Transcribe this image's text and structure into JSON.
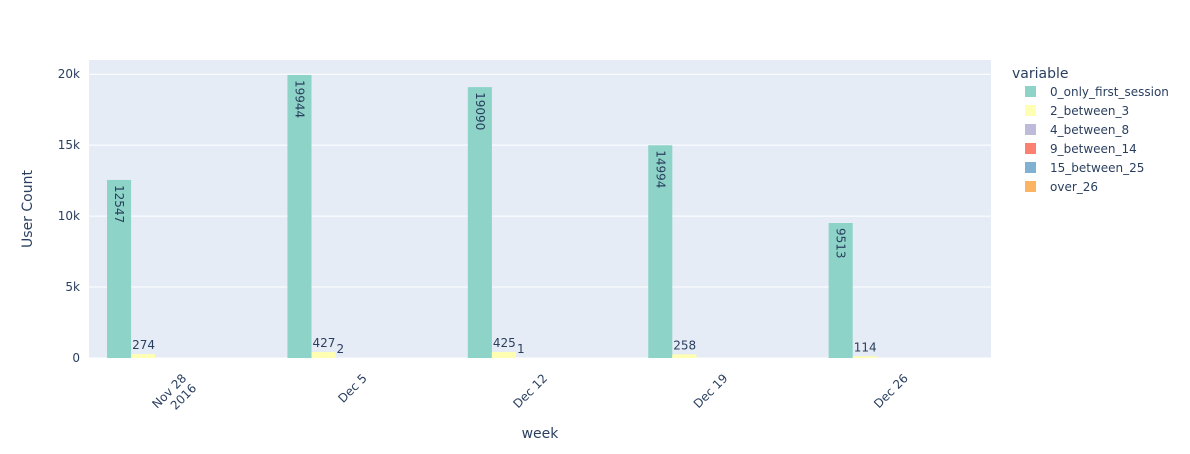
{
  "chart_data": {
    "type": "bar",
    "barmode": "group",
    "xlabel": "week",
    "ylabel": "User Count",
    "ylim": [
      0,
      21000
    ],
    "yticks": [
      0,
      5000,
      10000,
      15000,
      20000
    ],
    "ytick_labels": [
      "0",
      "5k",
      "10k",
      "15k",
      "20k"
    ],
    "categories": [
      "Nov 28 2016",
      "Dec 5",
      "Dec 12",
      "Dec 19",
      "Dec 26"
    ],
    "category_tick_lines": [
      [
        "Nov 28",
        "2016"
      ],
      [
        "Dec 5"
      ],
      [
        "Dec 12"
      ],
      [
        "Dec 19"
      ],
      [
        "Dec 26"
      ]
    ],
    "grid": true,
    "legend": {
      "title": "variable",
      "placement": "right"
    },
    "series": [
      {
        "name": "0_only_first_session",
        "color": "#8dd3c7",
        "values": [
          12547,
          19944,
          19090,
          14994,
          9513
        ]
      },
      {
        "name": "2_between_3",
        "color": "#ffffb3",
        "values": [
          274,
          427,
          425,
          258,
          114
        ]
      },
      {
        "name": "4_between_8",
        "color": "#bebada",
        "values": [
          0,
          2,
          1,
          0,
          0
        ]
      },
      {
        "name": "9_between_14",
        "color": "#fb8072",
        "values": [
          0,
          0,
          0,
          0,
          0
        ]
      },
      {
        "name": "15_between_25",
        "color": "#80b1d3",
        "values": [
          0,
          0,
          0,
          0,
          0
        ]
      },
      {
        "name": "over_26",
        "color": "#fdb462",
        "values": [
          0,
          0,
          0,
          0,
          0
        ]
      }
    ],
    "data_labels": [
      {
        "series": 0,
        "category": 0,
        "text": "12547",
        "position": "inside-rotated"
      },
      {
        "series": 0,
        "category": 1,
        "text": "19944",
        "position": "inside-rotated"
      },
      {
        "series": 0,
        "category": 2,
        "text": "19090",
        "position": "inside-rotated"
      },
      {
        "series": 0,
        "category": 3,
        "text": "14994",
        "position": "inside-rotated"
      },
      {
        "series": 0,
        "category": 4,
        "text": "9513",
        "position": "inside-rotated"
      },
      {
        "series": 1,
        "category": 0,
        "text": "274",
        "position": "outside"
      },
      {
        "series": 1,
        "category": 1,
        "text": "427",
        "position": "outside"
      },
      {
        "series": 1,
        "category": 2,
        "text": "425",
        "position": "outside"
      },
      {
        "series": 1,
        "category": 3,
        "text": "258",
        "position": "outside"
      },
      {
        "series": 1,
        "category": 4,
        "text": "114",
        "position": "outside"
      },
      {
        "series": 2,
        "category": 1,
        "text": "2",
        "position": "outside"
      },
      {
        "series": 2,
        "category": 2,
        "text": "1",
        "position": "outside"
      }
    ],
    "colors": {
      "plot_background": "#e5ecf6",
      "grid": "#ffffff",
      "text": "#2a3f5f"
    }
  }
}
